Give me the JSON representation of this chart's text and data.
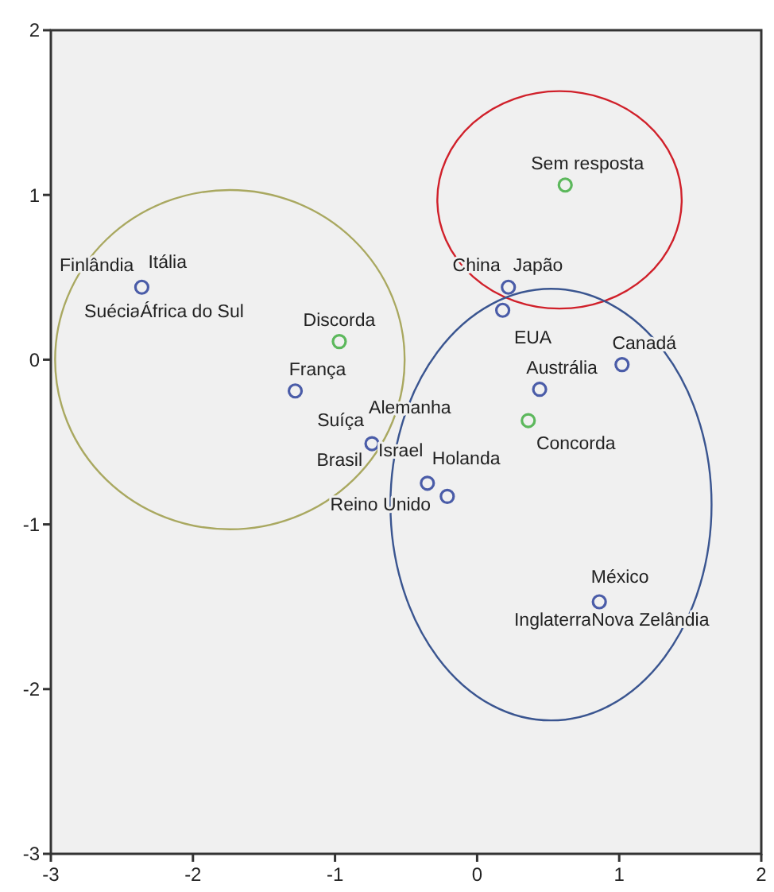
{
  "chart_data": {
    "type": "scatter",
    "marker": "circle",
    "grid": false,
    "xlim": [
      -3,
      2
    ],
    "xticks": [
      -3,
      -2,
      -1,
      0,
      1,
      2
    ],
    "ylim": [
      -3,
      2
    ],
    "yticks": [
      -3,
      -2,
      -1,
      0,
      1,
      2
    ],
    "series": [
      {
        "color": "#4a5ca8",
        "x": [
          -2.36,
          -1.28,
          -0.74,
          -0.35,
          -0.21,
          0.22,
          0.18,
          1.02,
          0.44,
          0.86
        ],
        "values": [
          0.44,
          -0.19,
          -0.51,
          -0.75,
          -0.83,
          0.44,
          0.3,
          -0.03,
          -0.18,
          -1.47
        ]
      },
      {
        "color": "#5cb85c",
        "x": [
          -0.97,
          0.36,
          0.62
        ],
        "values": [
          0.11,
          -0.37,
          1.06
        ]
      }
    ],
    "annotations": [
      {
        "text": "Finlândia",
        "x": -2.36,
        "y": 0.44
      },
      {
        "text": "Itália",
        "x": -2.36,
        "y": 0.44
      },
      {
        "text": "Suécia",
        "x": -2.36,
        "y": 0.44
      },
      {
        "text": "África do Sul",
        "x": -2.36,
        "y": 0.44
      },
      {
        "text": "Discorda",
        "x": -0.97,
        "y": 0.11
      },
      {
        "text": "França",
        "x": -1.28,
        "y": -0.19
      },
      {
        "text": "Suíça",
        "x": -0.74,
        "y": -0.51
      },
      {
        "text": "Alemanha",
        "x": -0.74,
        "y": -0.51
      },
      {
        "text": "Brasil",
        "x": -0.74,
        "y": -0.51
      },
      {
        "text": "Israel",
        "x": -0.74,
        "y": -0.51
      },
      {
        "text": "Holanda",
        "x": -0.35,
        "y": -0.75
      },
      {
        "text": "Reino Unido",
        "x": -0.21,
        "y": -0.83
      },
      {
        "text": "Sem resposta",
        "x": 0.62,
        "y": 1.06
      },
      {
        "text": "China",
        "x": 0.22,
        "y": 0.44
      },
      {
        "text": "Japão",
        "x": 0.22,
        "y": 0.44
      },
      {
        "text": "EUA",
        "x": 0.18,
        "y": 0.3
      },
      {
        "text": "Canadá",
        "x": 1.02,
        "y": -0.03
      },
      {
        "text": "Austrália",
        "x": 0.44,
        "y": -0.18
      },
      {
        "text": "Concorda",
        "x": 0.36,
        "y": -0.37
      },
      {
        "text": "México",
        "x": 0.86,
        "y": -1.47
      },
      {
        "text": "Inglaterra",
        "x": 0.86,
        "y": -1.47
      },
      {
        "text": "Nova Zelândia",
        "x": 0.86,
        "y": -1.47
      }
    ]
  }
}
